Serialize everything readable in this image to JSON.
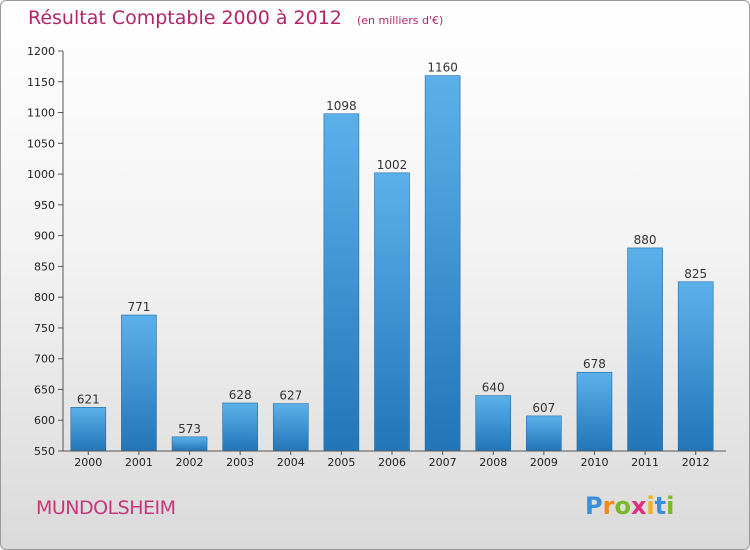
{
  "header": {
    "title": "Résultat Comptable 2000 à 2012",
    "subtitle": "(en milliers d'€)"
  },
  "footer": {
    "commune": "MUNDOLSHEIM",
    "logo_text": "Proxiti",
    "logo_letters": [
      {
        "ch": "P",
        "color": "#3c8fd6"
      },
      {
        "ch": "r",
        "color": "#f08a1e"
      },
      {
        "ch": "o",
        "color": "#79b829"
      },
      {
        "ch": "x",
        "color": "#e0307a"
      },
      {
        "ch": "i",
        "color": "#f2b01c"
      },
      {
        "ch": "t",
        "color": "#3c8fd6"
      },
      {
        "ch": "i",
        "color": "#79b829"
      }
    ]
  },
  "colors": {
    "bar_top": "#5cb0ea",
    "bar_bottom": "#2276b8",
    "axis": "#555555",
    "title": "#b0256a"
  },
  "chart_data": {
    "type": "bar",
    "title": "Résultat Comptable 2000 à 2012",
    "subtitle": "(en milliers d'€)",
    "xlabel": "",
    "ylabel": "",
    "categories": [
      "2000",
      "2001",
      "2002",
      "2003",
      "2004",
      "2005",
      "2006",
      "2007",
      "2008",
      "2009",
      "2010",
      "2011",
      "2012"
    ],
    "values": [
      621,
      771,
      573,
      628,
      627,
      1098,
      1002,
      1160,
      640,
      607,
      678,
      880,
      825
    ],
    "ylim": [
      550,
      1200
    ],
    "yticks": [
      550,
      600,
      650,
      700,
      750,
      800,
      850,
      900,
      950,
      1000,
      1050,
      1100,
      1150,
      1200
    ],
    "grid": false,
    "legend": "none"
  }
}
